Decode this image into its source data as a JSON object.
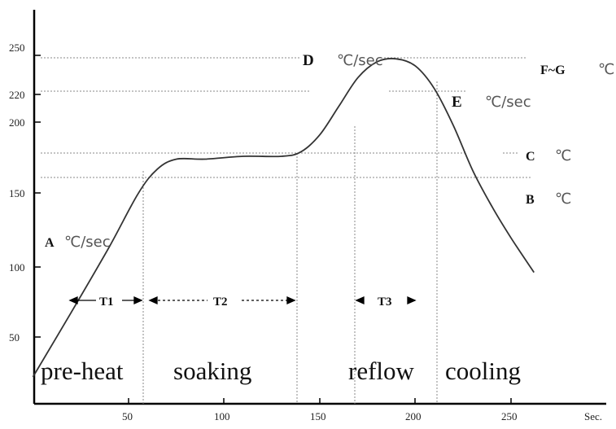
{
  "chart_data": {
    "type": "line",
    "xlabel": "Sec.",
    "ylabel": "",
    "xlim": [
      0,
      270
    ],
    "ylim": [
      0,
      270
    ],
    "x_ticks": [
      "50",
      "100",
      "150",
      "200",
      "250"
    ],
    "y_ticks": [
      "50",
      "100",
      "150",
      "200",
      "220",
      "250"
    ],
    "series": [
      {
        "x": [
          0,
          20,
          40,
          55,
          65,
          75,
          90,
          110,
          130,
          140,
          150,
          160,
          170,
          180,
          190,
          200,
          210,
          220,
          230,
          240,
          250,
          262
        ],
        "values": [
          21,
          66,
          112,
          149,
          166,
          173,
          173,
          175,
          175,
          178,
          190,
          210,
          230,
          241,
          243,
          238,
          222,
          196,
          165,
          140,
          118,
          94
        ]
      }
    ],
    "phases": [
      "pre-heat",
      "soaking",
      "reflow",
      "cooling"
    ],
    "intervals": [
      "T1",
      "T2",
      "T3"
    ],
    "annotations": [
      {
        "letter": "A",
        "unit": "℃/sec"
      },
      {
        "letter": "B",
        "unit": "℃"
      },
      {
        "letter": "C",
        "unit": "℃"
      },
      {
        "letter": "D",
        "unit": "℃/sec"
      },
      {
        "letter": "E",
        "unit": "℃/sec"
      },
      {
        "letter": "F~G",
        "unit": "℃"
      }
    ]
  }
}
